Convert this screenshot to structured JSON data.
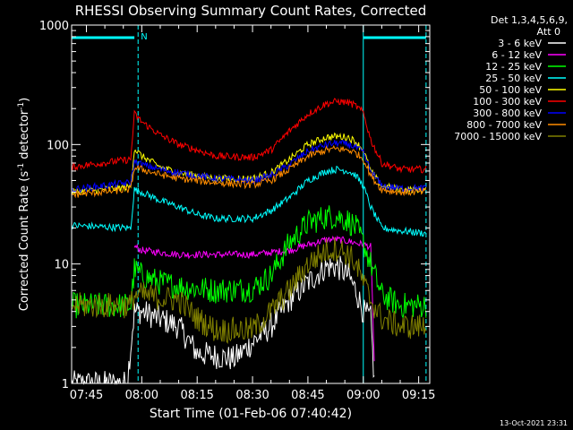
{
  "chart_data": {
    "type": "line",
    "title": "RHESSI Observing Summary Count Rates, Corrected",
    "xlabel": "Start Time (01-Feb-06 07:40:42)",
    "ylabel": "Corrected Count Rate (s",
    "ylabel_sup1": "-1",
    "ylabel_mid": " detector",
    "ylabel_sup2": "-1",
    "ylabel_end": ")",
    "y_scale": "log",
    "ylim": [
      1,
      1000
    ],
    "xlim": [
      "07:41",
      "09:18"
    ],
    "x_ticks": [
      "07:45",
      "08:00",
      "08:15",
      "08:30",
      "08:45",
      "09:00",
      "09:15"
    ],
    "y_ticks": [
      "1",
      "10",
      "100",
      "1000"
    ],
    "legend_header": [
      "Det 1,3,4,5,6,9,",
      "Att 0"
    ],
    "legend_position": "top-right outside",
    "footer": "13-Oct-2021 23:31",
    "flag_label": "N",
    "flags": {
      "color": "#00ffff",
      "night_band_1": [
        "07:41",
        "07:58"
      ],
      "night_band_2": [
        "09:00",
        "09:17"
      ],
      "vertical_lines": [
        "07:41",
        "07:59",
        "09:00",
        "09:17"
      ]
    },
    "series": [
      {
        "name": "3 - 6 keV",
        "color": "#ffffff",
        "x": [
          "07:41",
          "07:56",
          "07:58",
          "08:00",
          "08:10",
          "08:15",
          "08:25",
          "08:30",
          "08:35",
          "08:40",
          "08:45",
          "08:50",
          "08:53",
          "08:56",
          "08:58",
          "09:00",
          "09:02",
          "09:03"
        ],
        "y": [
          1,
          1,
          4,
          4,
          3,
          1.8,
          1.6,
          2.2,
          3,
          5,
          7,
          9.5,
          9.5,
          8,
          6,
          4,
          3.5,
          1
        ]
      },
      {
        "name": "6 - 12 keV",
        "color": "#ff00ff",
        "x": [
          "07:58",
          "08:00",
          "08:05",
          "08:10",
          "08:20",
          "08:30",
          "08:35",
          "08:40",
          "08:45",
          "08:50",
          "08:53",
          "08:56",
          "08:58",
          "09:00",
          "09:02",
          "09:03"
        ],
        "y": [
          14,
          13,
          12.5,
          12,
          12,
          12,
          12.5,
          13,
          14.5,
          16,
          16,
          15.5,
          15,
          14.5,
          14,
          1.5
        ]
      },
      {
        "name": "12 - 25 keV",
        "color": "#00ff00",
        "x": [
          "07:41",
          "07:57",
          "07:58",
          "08:00",
          "08:05",
          "08:10",
          "08:20",
          "08:30",
          "08:35",
          "08:40",
          "08:45",
          "08:50",
          "08:53",
          "08:56",
          "08:58",
          "09:00",
          "09:05",
          "09:10",
          "09:17"
        ],
        "y": [
          4.5,
          4.5,
          9,
          8,
          7,
          6.5,
          6,
          6.2,
          8,
          15,
          22,
          25,
          25,
          23,
          20,
          15,
          5.5,
          4.5,
          4.5
        ]
      },
      {
        "name": "25 - 50 keV",
        "color": "#00ffff",
        "x": [
          "07:41",
          "07:57",
          "07:58",
          "08:00",
          "08:05",
          "08:10",
          "08:15",
          "08:20",
          "08:30",
          "08:35",
          "08:40",
          "08:45",
          "08:50",
          "08:53",
          "08:56",
          "08:58",
          "09:00",
          "09:02",
          "09:05",
          "09:10",
          "09:17"
        ],
        "y": [
          21,
          20,
          42,
          40,
          34,
          30,
          26,
          24,
          24,
          28,
          36,
          50,
          60,
          62,
          60,
          55,
          45,
          30,
          20,
          19,
          18
        ]
      },
      {
        "name": "50 - 100 keV",
        "color": "#ffff00",
        "x": [
          "07:41",
          "07:57",
          "07:58",
          "08:00",
          "08:05",
          "08:10",
          "08:15",
          "08:20",
          "08:30",
          "08:35",
          "08:40",
          "08:45",
          "08:50",
          "08:53",
          "08:56",
          "08:58",
          "09:00",
          "09:02",
          "09:05",
          "09:10",
          "09:17"
        ],
        "y": [
          40,
          44,
          92,
          80,
          65,
          58,
          55,
          52,
          52,
          58,
          75,
          100,
          115,
          117,
          115,
          105,
          90,
          60,
          45,
          42,
          42
        ]
      },
      {
        "name": "100 - 300 keV",
        "color": "#ff0000",
        "x": [
          "07:41",
          "07:57",
          "07:58",
          "08:00",
          "08:05",
          "08:10",
          "08:15",
          "08:20",
          "08:30",
          "08:35",
          "08:40",
          "08:45",
          "08:50",
          "08:53",
          "08:56",
          "08:58",
          "09:00",
          "09:02",
          "09:05",
          "09:10",
          "09:17"
        ],
        "y": [
          65,
          75,
          180,
          155,
          120,
          100,
          90,
          80,
          78,
          90,
          130,
          180,
          220,
          230,
          225,
          210,
          185,
          110,
          70,
          62,
          62
        ]
      },
      {
        "name": "300 - 800 keV",
        "color": "#0000ff",
        "x": [
          "07:41",
          "07:57",
          "07:58",
          "08:00",
          "08:05",
          "08:10",
          "08:15",
          "08:20",
          "08:30",
          "08:35",
          "08:40",
          "08:45",
          "08:50",
          "08:53",
          "08:56",
          "08:58",
          "09:00",
          "09:02",
          "09:05",
          "09:10",
          "09:17"
        ],
        "y": [
          42,
          48,
          72,
          68,
          62,
          58,
          55,
          52,
          50,
          55,
          68,
          88,
          100,
          103,
          100,
          95,
          85,
          60,
          45,
          43,
          43
        ]
      },
      {
        "name": "800 - 7000 keV",
        "color": "#ff8c00",
        "x": [
          "07:41",
          "07:57",
          "07:58",
          "08:00",
          "08:05",
          "08:10",
          "08:15",
          "08:20",
          "08:30",
          "08:35",
          "08:40",
          "08:45",
          "08:50",
          "08:53",
          "08:56",
          "08:58",
          "09:00",
          "09:02",
          "09:05",
          "09:10",
          "09:17"
        ],
        "y": [
          38,
          42,
          64,
          62,
          56,
          52,
          50,
          48,
          46,
          50,
          62,
          80,
          90,
          92,
          90,
          85,
          76,
          55,
          42,
          40,
          40
        ]
      },
      {
        "name": "7000 - 15000 keV",
        "color": "#808000",
        "x": [
          "07:41",
          "07:57",
          "07:58",
          "08:00",
          "08:05",
          "08:10",
          "08:15",
          "08:20",
          "08:30",
          "08:35",
          "08:40",
          "08:45",
          "08:50",
          "08:53",
          "08:56",
          "08:58",
          "09:00",
          "09:02",
          "09:05",
          "09:10",
          "09:17"
        ],
        "y": [
          4.5,
          4.5,
          5.5,
          5.5,
          5.2,
          5,
          3.5,
          2.8,
          2.8,
          4,
          6,
          10,
          13,
          13.5,
          12,
          10,
          7,
          5,
          3.5,
          3,
          3
        ]
      }
    ]
  }
}
